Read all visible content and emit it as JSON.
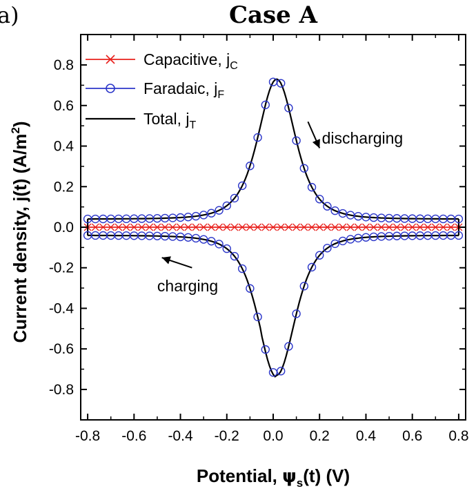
{
  "chart_data": {
    "type": "line",
    "panel_label": "a)",
    "title": "Case A",
    "xlabel": {
      "main": "Potential, ",
      "symbol": "ψ",
      "symbol_sub": "s",
      "tail": "(t) (V)"
    },
    "ylabel": {
      "main": "Current density, j(t) (A/m",
      "sup": "2",
      "tail": ")"
    },
    "xlim": [
      -0.83,
      0.83
    ],
    "ylim": [
      -0.95,
      0.95
    ],
    "xticks": [
      -0.8,
      -0.6,
      -0.4,
      -0.2,
      0.0,
      0.2,
      0.4,
      0.6,
      0.8
    ],
    "xtick_labels": [
      "-0.8",
      "-0.6",
      "-0.4",
      "-0.2",
      "0.0",
      "0.2",
      "0.4",
      "0.6",
      "0.8"
    ],
    "yticks": [
      -0.8,
      -0.6,
      -0.4,
      -0.2,
      0.0,
      0.2,
      0.4,
      0.6,
      0.8
    ],
    "ytick_labels": [
      "-0.8",
      "-0.6",
      "-0.4",
      "-0.2",
      "0.0",
      "0.2",
      "0.4",
      "0.6",
      "0.8"
    ],
    "grid": false,
    "legend_position": "top-left",
    "series": [
      {
        "name": "Capacitive, j",
        "name_sub": "C",
        "color": "#e8201c",
        "marker": "x",
        "line": true,
        "x": [
          -0.8,
          0.8
        ],
        "y": [
          0.0,
          0.0
        ]
      },
      {
        "name": "Faradaic, j",
        "name_sub": "F",
        "color": "#2b36c9",
        "marker": "circle",
        "line": true,
        "x_upper": [
          -0.8,
          -0.4,
          -0.2,
          -0.1,
          0.0,
          0.03,
          0.1,
          0.2,
          0.4,
          0.8
        ],
        "y_upper": [
          0.04,
          0.09,
          0.27,
          0.5,
          0.72,
          0.73,
          0.5,
          0.27,
          0.09,
          0.04
        ],
        "x_lower": [
          -0.8,
          -0.4,
          -0.2,
          -0.1,
          0.0,
          0.03,
          0.1,
          0.2,
          0.4,
          0.8
        ],
        "y_lower": [
          -0.04,
          -0.09,
          -0.27,
          -0.5,
          -0.74,
          -0.73,
          -0.5,
          -0.27,
          -0.09,
          -0.04
        ]
      },
      {
        "name": "Total, j",
        "name_sub": "T",
        "color": "#000000",
        "marker": "none",
        "line": true
      }
    ],
    "annotations": [
      {
        "text": "discharging",
        "x": 0.21,
        "y": 0.44,
        "arrow_from": [
          0.15,
          0.52
        ],
        "arrow_to": [
          0.2,
          0.39
        ]
      },
      {
        "text": "charging",
        "x": -0.5,
        "y": -0.29,
        "arrow_from": [
          -0.35,
          -0.2
        ],
        "arrow_to": [
          -0.48,
          -0.15
        ]
      }
    ]
  }
}
